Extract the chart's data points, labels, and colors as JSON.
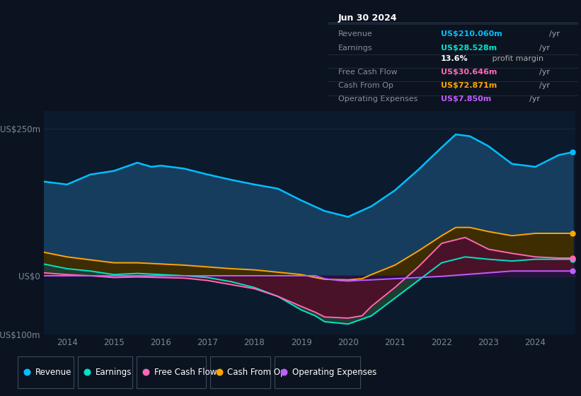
{
  "bg_color": "#0c1320",
  "plot_bg": "#0c1a2e",
  "title": "Jun 30 2024",
  "info_box": {
    "title": "Jun 30 2024",
    "rows": [
      {
        "label": "Revenue",
        "value": "US$210.060m",
        "unit": "/yr",
        "color": "#00bfff"
      },
      {
        "label": "Earnings",
        "value": "US$28.528m",
        "unit": "/yr",
        "color": "#00e5c8"
      },
      {
        "label": "",
        "value": "13.6%",
        "unit": " profit margin",
        "color": "#ffffff"
      },
      {
        "label": "Free Cash Flow",
        "value": "US$30.646m",
        "unit": "/yr",
        "color": "#ff69b4"
      },
      {
        "label": "Cash From Op",
        "value": "US$72.871m",
        "unit": "/yr",
        "color": "#ffa500"
      },
      {
        "label": "Operating Expenses",
        "value": "US$7.850m",
        "unit": "/yr",
        "color": "#bf5fff"
      }
    ]
  },
  "ylim": [
    -100,
    280
  ],
  "ytick_positions": [
    -100,
    0,
    250
  ],
  "ytick_labels": [
    "-US$100m",
    "US$0",
    "US$250m"
  ],
  "xlim_start": 2013.5,
  "xlim_end": 2024.85,
  "xticks": [
    2014,
    2015,
    2016,
    2017,
    2018,
    2019,
    2020,
    2021,
    2022,
    2023,
    2024
  ],
  "legend": [
    {
      "label": "Revenue",
      "color": "#00bfff"
    },
    {
      "label": "Earnings",
      "color": "#00e5c8"
    },
    {
      "label": "Free Cash Flow",
      "color": "#ff69b4"
    },
    {
      "label": "Cash From Op",
      "color": "#ffa500"
    },
    {
      "label": "Operating Expenses",
      "color": "#bf5fff"
    }
  ],
  "revenue_x": [
    2013.5,
    2014.0,
    2014.5,
    2015.0,
    2015.5,
    2015.8,
    2016.0,
    2016.5,
    2017.0,
    2017.5,
    2018.0,
    2018.5,
    2019.0,
    2019.5,
    2020.0,
    2020.5,
    2021.0,
    2021.5,
    2022.0,
    2022.3,
    2022.6,
    2023.0,
    2023.5,
    2024.0,
    2024.5,
    2024.8
  ],
  "revenue_y": [
    160,
    155,
    172,
    178,
    192,
    185,
    187,
    182,
    172,
    163,
    155,
    148,
    128,
    110,
    100,
    118,
    145,
    180,
    218,
    240,
    237,
    220,
    190,
    185,
    205,
    210
  ],
  "earnings_x": [
    2013.5,
    2014.0,
    2014.5,
    2015.0,
    2015.5,
    2016.0,
    2016.5,
    2017.0,
    2017.5,
    2018.0,
    2018.5,
    2019.0,
    2019.3,
    2019.5,
    2020.0,
    2020.5,
    2021.0,
    2021.5,
    2022.0,
    2022.5,
    2023.0,
    2023.5,
    2024.0,
    2024.5,
    2024.8
  ],
  "earnings_y": [
    20,
    12,
    8,
    2,
    4,
    2,
    0,
    -3,
    -10,
    -20,
    -35,
    -58,
    -68,
    -78,
    -82,
    -68,
    -38,
    -8,
    22,
    32,
    28,
    25,
    28,
    28,
    28
  ],
  "fcf_x": [
    2013.5,
    2014.0,
    2014.5,
    2015.0,
    2015.5,
    2016.0,
    2016.5,
    2017.0,
    2017.5,
    2018.0,
    2018.5,
    2019.0,
    2019.3,
    2019.5,
    2020.0,
    2020.3,
    2020.5,
    2021.0,
    2021.5,
    2022.0,
    2022.5,
    2023.0,
    2023.5,
    2024.0,
    2024.5,
    2024.8
  ],
  "fcf_y": [
    5,
    2,
    0,
    -3,
    -2,
    -3,
    -4,
    -8,
    -15,
    -22,
    -35,
    -52,
    -62,
    -70,
    -72,
    -68,
    -52,
    -20,
    15,
    55,
    65,
    45,
    38,
    32,
    30,
    30
  ],
  "cfop_x": [
    2013.5,
    2014.0,
    2014.5,
    2015.0,
    2015.5,
    2016.0,
    2016.5,
    2017.0,
    2017.5,
    2018.0,
    2018.5,
    2019.0,
    2019.3,
    2019.5,
    2020.0,
    2020.3,
    2020.5,
    2021.0,
    2021.5,
    2022.0,
    2022.3,
    2022.6,
    2023.0,
    2023.5,
    2024.0,
    2024.5,
    2024.8
  ],
  "cfop_y": [
    40,
    32,
    27,
    22,
    22,
    20,
    18,
    15,
    12,
    10,
    6,
    2,
    -3,
    -6,
    -7,
    -5,
    2,
    18,
    42,
    68,
    82,
    82,
    75,
    68,
    72,
    72,
    72
  ],
  "opex_x": [
    2013.5,
    2019.3,
    2019.5,
    2019.8,
    2020.0,
    2020.2,
    2020.5,
    2021.0,
    2021.5,
    2022.0,
    2022.5,
    2023.0,
    2023.5,
    2024.0,
    2024.5,
    2024.8
  ],
  "opex_y": [
    0,
    0,
    -5,
    -8,
    -9,
    -8,
    -7,
    -5,
    -3,
    -1,
    2,
    5,
    8,
    8,
    8,
    8
  ],
  "revenue_color": "#00bfff",
  "revenue_fill": "#163d5e",
  "earnings_color": "#00e5c8",
  "earnings_fill": "#1d3d30",
  "fcf_color": "#ff69b4",
  "fcf_fill": "#4a1228",
  "cfop_color": "#ffa500",
  "cfop_fill": "#3d2d00",
  "opex_color": "#bf5fff",
  "opex_fill": "#2a1040"
}
